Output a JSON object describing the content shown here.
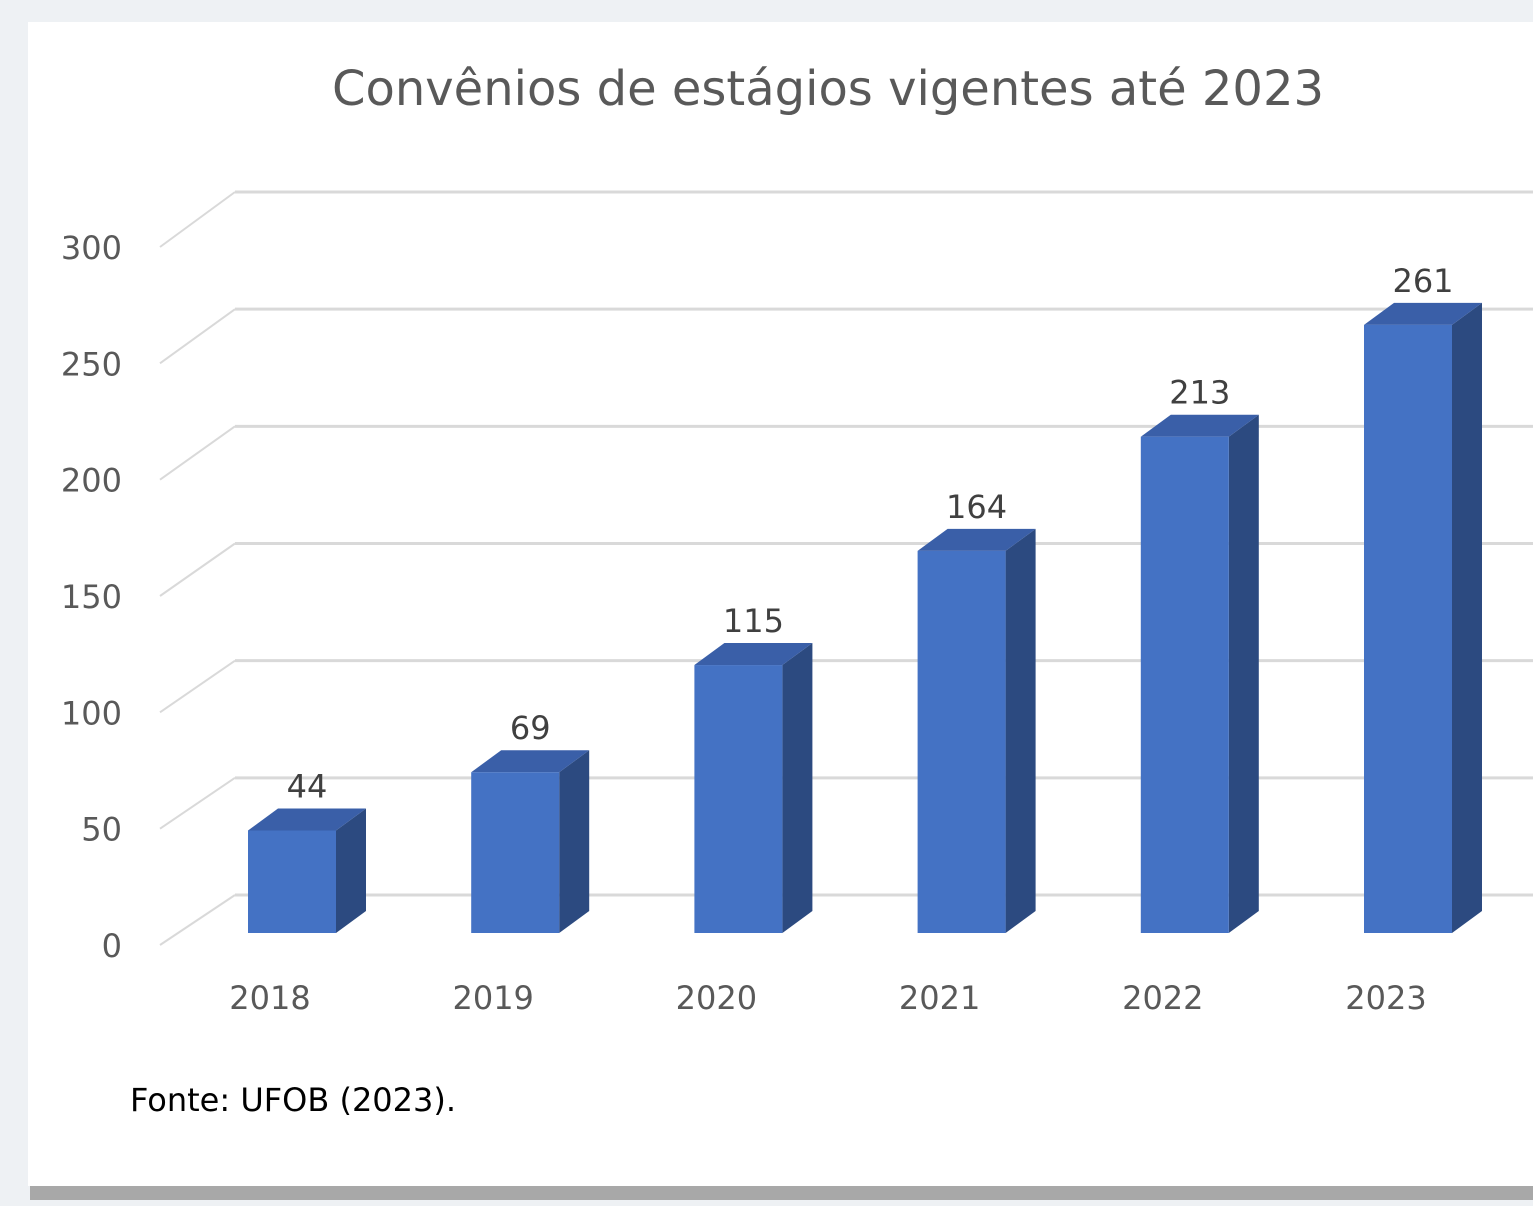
{
  "chart_data": {
    "type": "bar3d",
    "title": "Convênios de estágios vigentes até 2023",
    "categories": [
      "2018",
      "2019",
      "2020",
      "2021",
      "2022",
      "2023"
    ],
    "values": [
      44,
      69,
      115,
      164,
      213,
      261
    ],
    "color": "#4472c4",
    "ylim": [
      0,
      300
    ],
    "yticks": [
      0,
      50,
      100,
      150,
      200,
      250,
      300
    ],
    "grid": true,
    "source": "Fonte: UFOB (2023)."
  }
}
